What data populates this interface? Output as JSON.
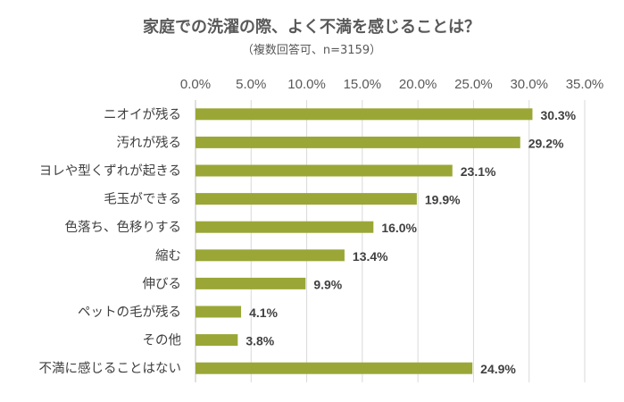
{
  "chart_data": {
    "type": "bar",
    "orientation": "horizontal",
    "title": "家庭での洗濯の際、よく不満を感じることは？",
    "subtitle": "（複数回答可、n=3159）",
    "categories": [
      "ニオイが残る",
      "汚れが残る",
      "ヨレや型くずれが起きる",
      "毛玉ができる",
      "色落ち、色移りする",
      "縮む",
      "伸びる",
      "ペットの毛が残る",
      "その他",
      "不満に感じることはない"
    ],
    "values": [
      30.3,
      29.2,
      23.1,
      19.9,
      16.0,
      13.4,
      9.9,
      4.1,
      3.8,
      24.9
    ],
    "data_labels": [
      "30.3%",
      "29.2%",
      "23.1%",
      "19.9%",
      "16.0%",
      "13.4%",
      "9.9%",
      "4.1%",
      "3.8%",
      "24.9%"
    ],
    "xticks": [
      "0.0%",
      "5.0%",
      "10.0%",
      "15.0%",
      "20.0%",
      "25.0%",
      "30.0%",
      "35.0%"
    ],
    "xlim": [
      0,
      35
    ],
    "x_axis_position": "top",
    "grid": true,
    "legend": "none",
    "bar_color": "#9aa736"
  }
}
